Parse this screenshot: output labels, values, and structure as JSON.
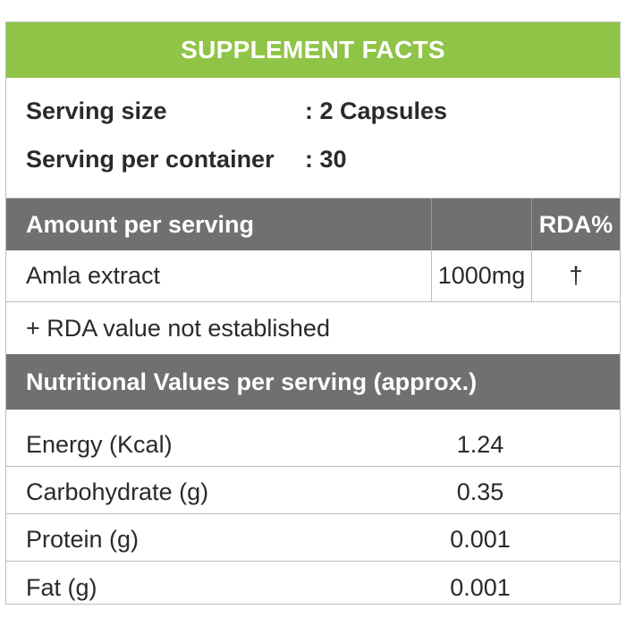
{
  "title": "SUPPLEMENT FACTS",
  "serving": {
    "size_label": "Serving size",
    "size_value": ": 2 Capsules",
    "per_container_label": "Serving per container",
    "per_container_value": ": 30"
  },
  "amount_table": {
    "header_label": "Amount per serving",
    "header_rda": "RDA%",
    "rows": [
      {
        "name": "Amla extract",
        "amount": "1000mg",
        "rda": "†"
      }
    ],
    "note": "+ RDA value not established"
  },
  "nutrition": {
    "header": "Nutritional Values per serving (approx.)",
    "rows": [
      {
        "label": "Energy (Kcal)",
        "value": "1.24"
      },
      {
        "label": "Carbohydrate (g)",
        "value": "0.35"
      },
      {
        "label": "Protein (g)",
        "value": "0.001"
      },
      {
        "label": "Fat (g)",
        "value": "0.001"
      }
    ]
  },
  "colors": {
    "title_bar": "#8fc446",
    "header_bar": "#707070",
    "border": "#bdbdbd"
  }
}
